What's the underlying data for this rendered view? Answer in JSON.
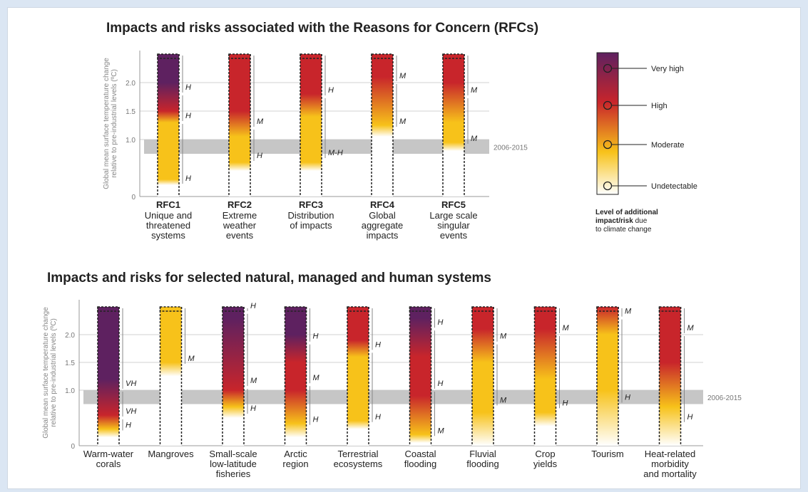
{
  "colors": {
    "very_high": "#5e2160",
    "high": "#c8252b",
    "moderate": "#f7c21a",
    "undetectable": "#ffffff",
    "band": "#c6c6c6",
    "axis": "#9a9a9a",
    "text": "#222222"
  },
  "top": {
    "title": "Impacts and risks associated with the Reasons for Concern (RFCs)",
    "ylabel_line1": "Global mean surface temperature change",
    "ylabel_line2": "relative to pre-industrial levels (ºC)",
    "ticks": [
      "0",
      "1.0",
      "1.5",
      "2.0"
    ],
    "band_label": "2006-2015",
    "columns": [
      {
        "id": "RFC1",
        "label": [
          "Unique and",
          "threatened",
          "systems"
        ],
        "stops": [
          [
            0.2,
            "w"
          ],
          [
            0.3,
            "m"
          ],
          [
            1.3,
            "m"
          ],
          [
            1.5,
            "h"
          ],
          [
            2.0,
            "v"
          ]
        ],
        "conf": [
          {
            "t": 0.2,
            "l": "H"
          },
          {
            "t": 1.3,
            "l": "H"
          },
          {
            "t": 1.8,
            "l": "H"
          }
        ]
      },
      {
        "id": "RFC2",
        "label": [
          "Extreme",
          "weather",
          "events"
        ],
        "stops": [
          [
            0.45,
            "w"
          ],
          [
            0.6,
            "m"
          ],
          [
            1.05,
            "m"
          ],
          [
            1.5,
            "h"
          ]
        ],
        "conf": [
          {
            "t": 0.6,
            "l": "H"
          },
          {
            "t": 1.2,
            "l": "M"
          }
        ]
      },
      {
        "id": "RFC3",
        "label": [
          "Distribution",
          "of impacts"
        ],
        "stops": [
          [
            0.45,
            "w"
          ],
          [
            0.6,
            "m"
          ],
          [
            1.4,
            "m"
          ],
          [
            1.8,
            "h"
          ]
        ],
        "conf": [
          {
            "t": 0.65,
            "l": "M-H"
          },
          {
            "t": 1.75,
            "l": "H"
          }
        ]
      },
      {
        "id": "RFC4",
        "label": [
          "Global",
          "aggregate",
          "impacts"
        ],
        "stops": [
          [
            1.05,
            "w"
          ],
          [
            1.25,
            "m"
          ],
          [
            2.1,
            "h"
          ],
          [
            2.5,
            "h"
          ]
        ],
        "conf": [
          {
            "t": 1.2,
            "l": "M"
          },
          {
            "t": 2.0,
            "l": "M"
          }
        ]
      },
      {
        "id": "RFC5",
        "label": [
          "Large scale",
          "singular",
          "events"
        ],
        "stops": [
          [
            0.8,
            "w"
          ],
          [
            0.95,
            "m"
          ],
          [
            1.3,
            "m"
          ],
          [
            2.0,
            "h"
          ]
        ],
        "conf": [
          {
            "t": 0.9,
            "l": "M"
          },
          {
            "t": 1.75,
            "l": "M"
          }
        ]
      }
    ]
  },
  "legend": {
    "levels": [
      "Very high",
      "High",
      "Moderate",
      "Undetectable"
    ],
    "caption_bold_1": "Level of additional",
    "caption_bold_2": "impact/risk",
    "caption_rest": " due",
    "caption_3": "to climate change"
  },
  "bottom": {
    "title": "Impacts and risks for selected natural, managed and human systems",
    "ylabel_line1": "Global mean surface temperature change",
    "ylabel_line2": "relative to pre-industrial levels (ºC)",
    "ticks": [
      "0",
      "1.0",
      "1.5",
      "2.0"
    ],
    "band_label": "2006-2015",
    "columns": [
      {
        "label": [
          "Warm-water",
          "corals"
        ],
        "stops": [
          [
            0.15,
            "w"
          ],
          [
            0.3,
            "m"
          ],
          [
            0.55,
            "h"
          ],
          [
            1.2,
            "v"
          ]
        ],
        "conf": [
          {
            "t": 0.25,
            "l": "H"
          },
          {
            "t": 0.5,
            "l": "VH"
          },
          {
            "t": 1.0,
            "l": "VH"
          }
        ]
      },
      {
        "label": [
          "Mangroves"
        ],
        "stops": [
          [
            1.25,
            "w"
          ],
          [
            1.5,
            "m"
          ]
        ],
        "conf": [
          {
            "t": 1.45,
            "l": "M"
          }
        ]
      },
      {
        "label": [
          "Small-scale",
          "low-latitude",
          "fisheries"
        ],
        "stops": [
          [
            0.5,
            "w"
          ],
          [
            0.7,
            "m"
          ],
          [
            1.0,
            "h"
          ],
          [
            2.3,
            "v"
          ]
        ],
        "conf": [
          {
            "t": 0.55,
            "l": "H"
          },
          {
            "t": 1.05,
            "l": "M"
          },
          {
            "t": 2.4,
            "l": "H"
          }
        ]
      },
      {
        "label": [
          "Arctic",
          "region"
        ],
        "stops": [
          [
            0.15,
            "w"
          ],
          [
            0.4,
            "m"
          ],
          [
            1.0,
            "h"
          ],
          [
            1.5,
            "h"
          ],
          [
            2.0,
            "v"
          ]
        ],
        "conf": [
          {
            "t": 0.35,
            "l": "H"
          },
          {
            "t": 1.1,
            "l": "M"
          },
          {
            "t": 1.85,
            "l": "H"
          }
        ]
      },
      {
        "label": [
          "Terrestrial",
          "ecosystems"
        ],
        "stops": [
          [
            0.3,
            "w"
          ],
          [
            0.45,
            "m"
          ],
          [
            1.6,
            "m"
          ],
          [
            1.9,
            "h"
          ],
          [
            2.5,
            "h"
          ]
        ],
        "conf": [
          {
            "t": 0.4,
            "l": "H"
          },
          {
            "t": 1.7,
            "l": "H"
          }
        ]
      },
      {
        "label": [
          "Coastal",
          "flooding"
        ],
        "stops": [
          [
            0.05,
            "w"
          ],
          [
            0.2,
            "m"
          ],
          [
            0.9,
            "h"
          ],
          [
            1.6,
            "h"
          ],
          [
            2.3,
            "v"
          ]
        ],
        "conf": [
          {
            "t": 0.15,
            "l": "M"
          },
          {
            "t": 1.0,
            "l": "H"
          },
          {
            "t": 2.1,
            "l": "H"
          }
        ]
      },
      {
        "label": [
          "Fluvial",
          "flooding"
        ],
        "stops": [
          [
            0.0,
            "w"
          ],
          [
            0.6,
            "m"
          ],
          [
            1.5,
            "m"
          ],
          [
            2.1,
            "h"
          ],
          [
            2.5,
            "h"
          ]
        ],
        "conf": [
          {
            "t": 0.7,
            "l": "M"
          },
          {
            "t": 1.85,
            "l": "M"
          }
        ]
      },
      {
        "label": [
          "Crop",
          "yields"
        ],
        "stops": [
          [
            0.35,
            "w"
          ],
          [
            0.6,
            "m"
          ],
          [
            1.2,
            "m"
          ],
          [
            2.1,
            "h"
          ],
          [
            2.5,
            "h"
          ]
        ],
        "conf": [
          {
            "t": 0.65,
            "l": "H"
          },
          {
            "t": 2.0,
            "l": "M"
          }
        ]
      },
      {
        "label": [
          "Tourism"
        ],
        "stops": [
          [
            0.0,
            "w"
          ],
          [
            1.0,
            "m"
          ],
          [
            2.0,
            "m"
          ],
          [
            2.5,
            "h"
          ]
        ],
        "conf": [
          {
            "t": 0.75,
            "l": "H"
          },
          {
            "t": 2.3,
            "l": "M"
          }
        ]
      },
      {
        "label": [
          "Heat-related",
          "morbidity",
          "and mortality"
        ],
        "stops": [
          [
            0.0,
            "w"
          ],
          [
            0.7,
            "m"
          ],
          [
            1.5,
            "h"
          ],
          [
            2.5,
            "h"
          ]
        ],
        "conf": [
          {
            "t": 0.4,
            "l": "H"
          },
          {
            "t": 2.0,
            "l": "M"
          }
        ]
      }
    ]
  }
}
